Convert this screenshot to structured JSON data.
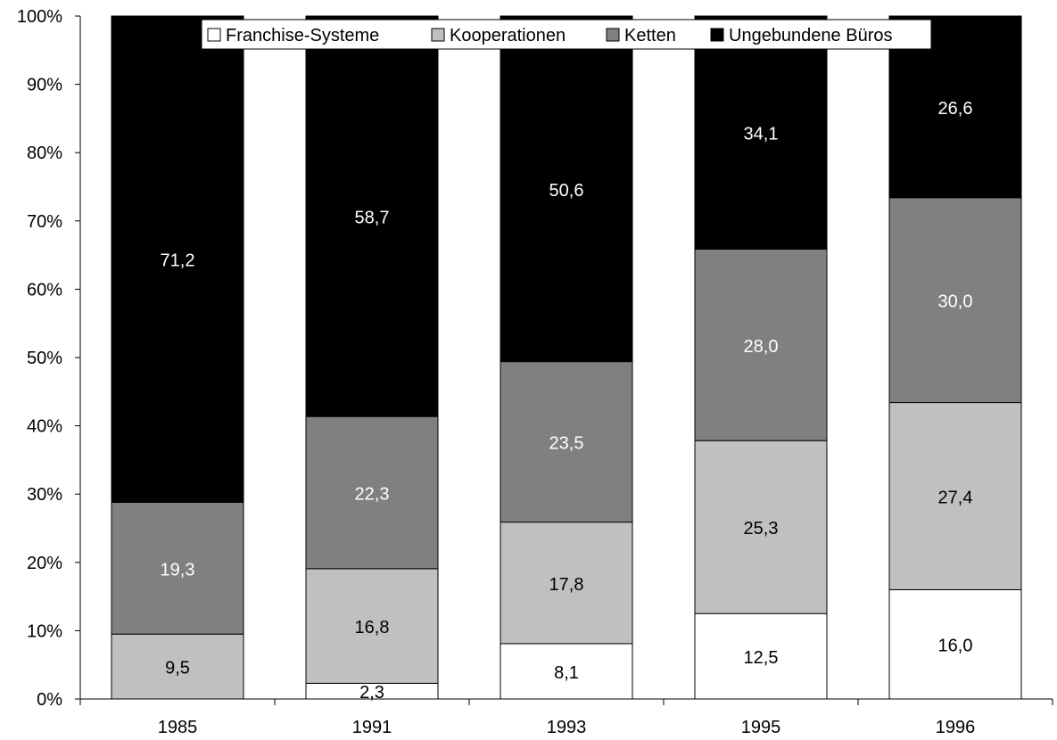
{
  "chart_data": {
    "type": "bar",
    "stacked": true,
    "categories": [
      "1985",
      "1991",
      "1993",
      "1995",
      "1996"
    ],
    "series": [
      {
        "name": "Franchise-Systeme",
        "color": "#ffffff",
        "label_color": "#000000",
        "values": [
          0,
          2.3,
          8.1,
          12.5,
          16.0
        ],
        "labels": [
          "",
          "2,3",
          "8,1",
          "12,5",
          "16,0"
        ]
      },
      {
        "name": "Kooperationen",
        "color": "#c0c0c0",
        "label_color": "#000000",
        "values": [
          9.5,
          16.8,
          17.8,
          25.3,
          27.4
        ],
        "labels": [
          "9,5",
          "16,8",
          "17,8",
          "25,3",
          "27,4"
        ]
      },
      {
        "name": "Ketten",
        "color": "#808080",
        "label_color": "#ffffff",
        "values": [
          19.3,
          22.3,
          23.5,
          28.0,
          30.0
        ],
        "labels": [
          "19,3",
          "22,3",
          "23,5",
          "28,0",
          "30,0"
        ]
      },
      {
        "name": "Ungebundene Büros",
        "color": "#000000",
        "label_color": "#ffffff",
        "values": [
          71.2,
          58.7,
          50.6,
          34.1,
          26.6
        ],
        "labels": [
          "71,2",
          "58,7",
          "50,6",
          "34,1",
          "26,6"
        ]
      }
    ],
    "yticks": [
      "0%",
      "10%",
      "20%",
      "30%",
      "40%",
      "50%",
      "60%",
      "70%",
      "80%",
      "90%",
      "100%"
    ],
    "ylim": [
      0,
      100
    ],
    "grid": false,
    "legend_position": "top"
  }
}
